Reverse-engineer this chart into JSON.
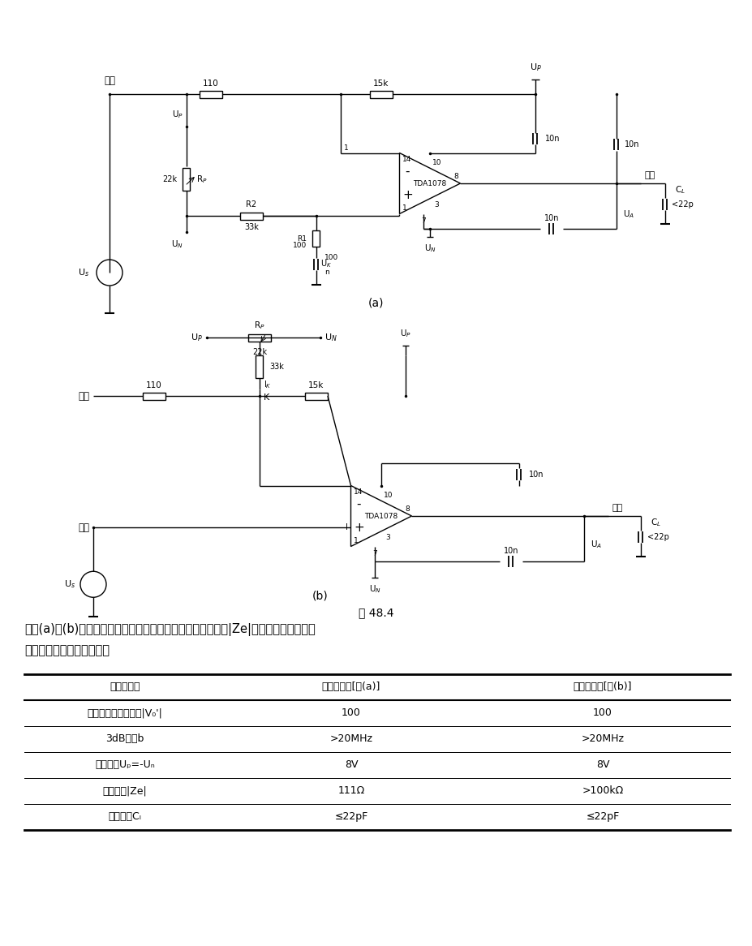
{
  "title_fig": "图 48.4",
  "desc1": "．图(a)和(b)两个电路除输入信号的符号不同外，在输入阻抗|Ze|上也有明显不同，其",
  "desc2": "主要技术数据如下表所示。",
  "table_headers": [
    "放大器类型",
    "反相输入端[图(a)]",
    "同相输入端[图(b)]"
  ],
  "table_rows": [
    [
      "低频下闭环放大系数|V₀'|",
      "100",
      "100"
    ],
    [
      "3dB带寽b",
      ">20MHz",
      ">20MHz"
    ],
    [
      "电源电压Uₚ=-Uₙ",
      "8V",
      "8V"
    ],
    [
      "输入阻抗|Ze|",
      "111Ω",
      ">100kΩ"
    ],
    [
      "负载电容Cₗ",
      "≤22pF",
      "≤22pF"
    ]
  ],
  "bg_color": "#ffffff",
  "line_color": "#000000"
}
